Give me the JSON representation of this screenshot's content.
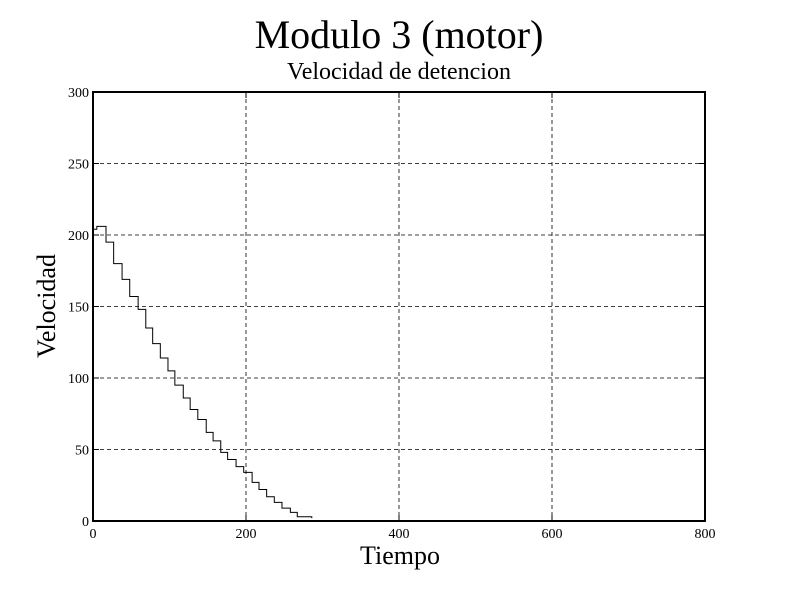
{
  "chart_data": {
    "type": "step",
    "title": "Modulo 3 (motor)",
    "subtitle": "Velocidad de detencion",
    "x_label": "Tiempo",
    "y_label": "Velocidad",
    "x": [
      0,
      5,
      17,
      27,
      38,
      48,
      59,
      69,
      78,
      88,
      98,
      107,
      118,
      127,
      137,
      148,
      157,
      167,
      176,
      187,
      197,
      208,
      217,
      227,
      237,
      247,
      258,
      267,
      277,
      286
    ],
    "values": [
      204,
      206,
      195,
      180,
      169,
      157,
      148,
      135,
      124,
      114,
      105,
      95,
      86,
      78,
      71,
      62,
      56,
      48,
      43,
      38,
      34,
      27,
      22,
      17,
      13,
      9,
      6,
      3,
      3,
      2
    ],
    "color": "#000000",
    "xlim": [
      0,
      800
    ],
    "xticks": [
      0,
      200,
      400,
      600,
      800
    ],
    "ylim": [
      0,
      300
    ],
    "yticks": [
      0,
      50,
      100,
      150,
      200,
      250,
      300
    ],
    "grid": true
  }
}
